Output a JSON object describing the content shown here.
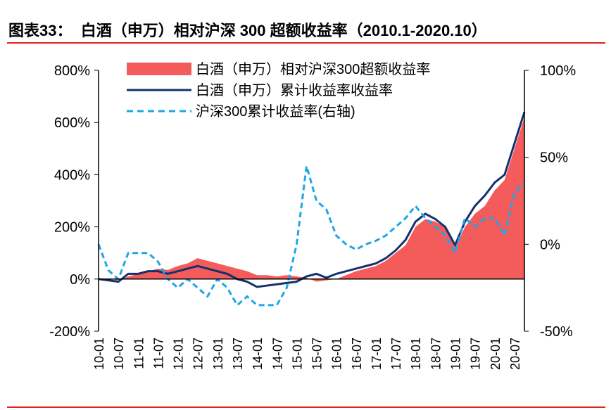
{
  "title": "图表33：  白酒（申万）相对沪深 300 超额收益率（2010.1-2020.10）",
  "colors": {
    "excess": "#f45b5b",
    "baijiu": "#14306e",
    "hs300": "#1ea6e6",
    "rule": "#e0221b"
  },
  "chart_data": {
    "type": "line",
    "title": "白酒（申万）相对沪深 300 超额收益率（2010.1-2020.10）",
    "left_axis": {
      "range": [
        -200,
        800
      ],
      "ticks": [
        "800%",
        "600%",
        "400%",
        "200%",
        "0%",
        "-200%"
      ],
      "tick_values": [
        800,
        600,
        400,
        200,
        0,
        -200
      ]
    },
    "right_axis": {
      "range": [
        -50,
        100
      ],
      "ticks": [
        "100%",
        "50%",
        "0%",
        "-50%"
      ],
      "tick_values": [
        100,
        50,
        0,
        -50
      ]
    },
    "x_ticks": [
      "10-01",
      "10-07",
      "11-01",
      "11-07",
      "12-01",
      "12-07",
      "13-01",
      "13-07",
      "14-01",
      "14-07",
      "15-01",
      "15-07",
      "16-01",
      "16-07",
      "17-01",
      "17-07",
      "18-01",
      "18-07",
      "19-01",
      "19-07",
      "20-01",
      "20-07"
    ],
    "dates": [
      "2010-01",
      "2010-04",
      "2010-07",
      "2010-10",
      "2011-01",
      "2011-04",
      "2011-07",
      "2011-10",
      "2012-01",
      "2012-04",
      "2012-07",
      "2012-10",
      "2013-01",
      "2013-04",
      "2013-07",
      "2013-10",
      "2014-01",
      "2014-04",
      "2014-07",
      "2014-10",
      "2015-01",
      "2015-04",
      "2015-07",
      "2015-10",
      "2016-01",
      "2016-04",
      "2016-07",
      "2016-10",
      "2017-01",
      "2017-04",
      "2017-07",
      "2017-10",
      "2018-01",
      "2018-04",
      "2018-07",
      "2018-10",
      "2019-01",
      "2019-04",
      "2019-07",
      "2019-10",
      "2020-01",
      "2020-04",
      "2020-07",
      "2020-10"
    ],
    "series": [
      {
        "name": "白酒（申万）相对沪深300超额收益率",
        "type": "area",
        "axis": "left",
        "values": [
          0,
          0,
          -5,
          10,
          20,
          30,
          40,
          35,
          50,
          60,
          80,
          70,
          60,
          50,
          40,
          30,
          15,
          15,
          10,
          15,
          10,
          5,
          -10,
          -5,
          0,
          15,
          30,
          40,
          50,
          70,
          100,
          130,
          200,
          230,
          220,
          200,
          120,
          200,
          250,
          280,
          340,
          380,
          500,
          620
        ]
      },
      {
        "name": "白酒（申万）累计收益率收益率",
        "type": "line",
        "axis": "left",
        "values": [
          0,
          -5,
          -10,
          20,
          20,
          30,
          30,
          20,
          30,
          40,
          50,
          40,
          30,
          20,
          0,
          -10,
          -30,
          -25,
          -20,
          -15,
          -10,
          10,
          20,
          5,
          20,
          30,
          40,
          50,
          60,
          80,
          110,
          150,
          220,
          250,
          230,
          200,
          130,
          220,
          280,
          320,
          370,
          400,
          520,
          640
        ]
      },
      {
        "name": "沪深300累计收益率(右轴)",
        "type": "dashed-line",
        "axis": "right",
        "values": [
          0,
          -15,
          -20,
          -5,
          -5,
          -5,
          -10,
          -20,
          -25,
          -20,
          -25,
          -30,
          -20,
          -25,
          -35,
          -30,
          -35,
          -35,
          -35,
          -25,
          0,
          45,
          25,
          20,
          5,
          0,
          -3,
          0,
          2,
          5,
          10,
          15,
          22,
          15,
          10,
          5,
          -5,
          15,
          10,
          15,
          15,
          5,
          30,
          35
        ]
      }
    ],
    "legend": "top-center",
    "grid": false
  }
}
